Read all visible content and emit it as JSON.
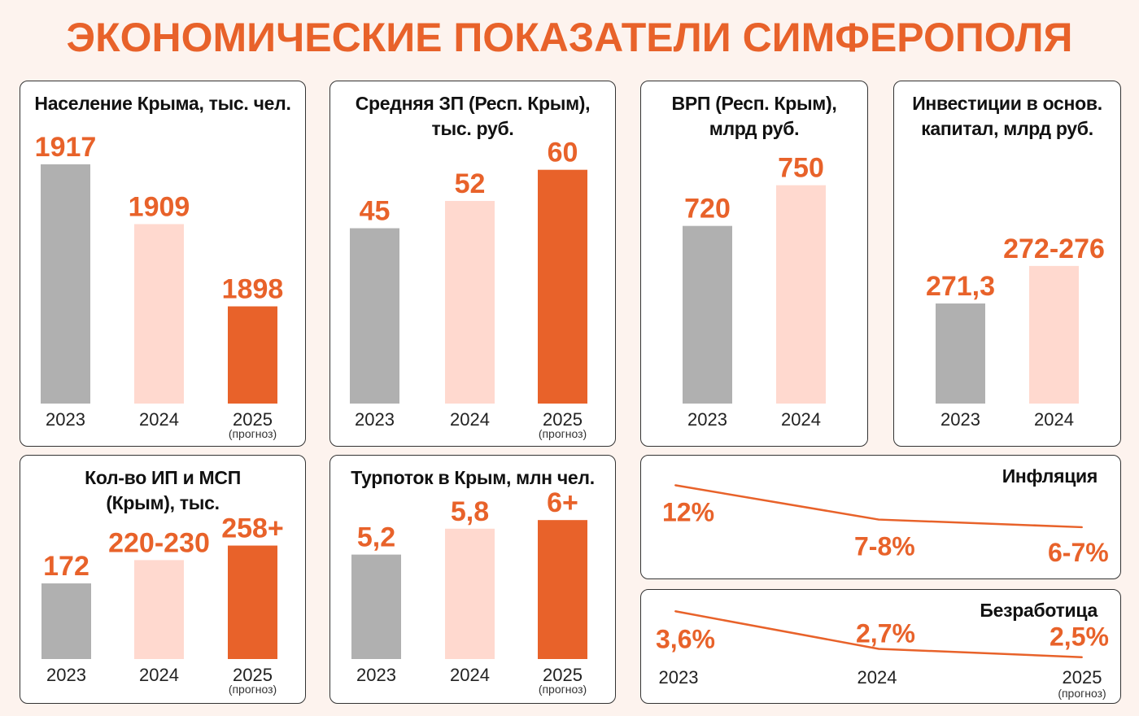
{
  "header": {
    "title": "ЭКОНОМИЧЕСКИЕ ПОКАЗАТЕЛИ СИМФЕРОПОЛЯ"
  },
  "colors": {
    "accent": "#e8622a",
    "bar_colors": [
      "#b0b0b0",
      "#ffd9cf",
      "#e8622a"
    ],
    "background": "#fdf3ee"
  },
  "chart_data": [
    {
      "type": "bar",
      "title": "Население Крыма, тыс. чел.",
      "categories": [
        "2023",
        "2024",
        "2025"
      ],
      "category_notes": [
        "",
        "",
        "(прогноз)"
      ],
      "values": [
        1917,
        1909,
        1898
      ],
      "labels": [
        "1917",
        "1909",
        "1898"
      ],
      "ylim": [
        1885,
        1922
      ]
    },
    {
      "type": "bar",
      "title": "Средняя ЗП (Респ. Крым),\nтыс. руб.",
      "categories": [
        "2023",
        "2024",
        "2025"
      ],
      "category_notes": [
        "",
        "",
        "(прогноз)"
      ],
      "values": [
        45,
        52,
        60
      ],
      "labels": [
        "45",
        "52",
        "60"
      ],
      "ylim": [
        0,
        71
      ]
    },
    {
      "type": "bar",
      "title": "ВРП (Респ. Крым),\nмлрд руб.",
      "categories": [
        "2023",
        "2024"
      ],
      "category_notes": [
        "",
        ""
      ],
      "values": [
        720,
        750
      ],
      "labels": [
        "720",
        "750"
      ],
      "ylim": [
        589,
        793
      ]
    },
    {
      "type": "bar",
      "title": "Инвестиции в основ.\nкапитал, млрд руб.",
      "categories": [
        "2023",
        "2024"
      ],
      "category_notes": [
        "",
        ""
      ],
      "values": [
        271.3,
        274
      ],
      "labels": [
        "271,3",
        "272-276"
      ],
      "ylim": [
        264.1,
        284
      ]
    },
    {
      "type": "bar",
      "title": "Кол-во ИП и МСП\n(Крым), тыс.",
      "categories": [
        "2023",
        "2024",
        "2025"
      ],
      "category_notes": [
        "",
        "",
        "(прогноз)"
      ],
      "values": [
        172,
        225,
        258
      ],
      "labels": [
        "172",
        "220-230",
        "258+"
      ],
      "ylim": [
        0,
        370
      ]
    },
    {
      "type": "bar",
      "title": "Турпоток в Крым, млн чел.",
      "categories": [
        "2023",
        "2024",
        "2025"
      ],
      "category_notes": [
        "",
        "",
        "(прогноз)"
      ],
      "values": [
        5.2,
        5.8,
        6
      ],
      "labels": [
        "5,2",
        "5,8",
        "6+"
      ],
      "ylim": [
        2.78,
        6.55
      ]
    },
    {
      "type": "line",
      "title": "Инфляция",
      "values": [
        12,
        7.5,
        6.5
      ],
      "labels": [
        "12%",
        "7-8%",
        "6-7%"
      ],
      "ylim": [
        5,
        13
      ]
    },
    {
      "type": "line",
      "title": "Безработица",
      "categories": [
        "2023",
        "2024",
        "2025"
      ],
      "category_notes": [
        "",
        "",
        "(прогноз)"
      ],
      "values": [
        3.6,
        2.7,
        2.5
      ],
      "labels": [
        "3,6%",
        "2,7%",
        "2,5%"
      ],
      "ylim": [
        2.3,
        3.8
      ]
    }
  ]
}
